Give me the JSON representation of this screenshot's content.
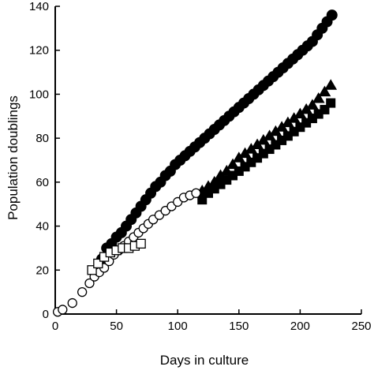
{
  "chart_data": {
    "type": "scatter",
    "title": "",
    "xlabel": "Days in culture",
    "ylabel": "Population doublings",
    "xlim": [
      0,
      250
    ],
    "ylim": [
      0,
      140
    ],
    "xticks": [
      0,
      50,
      100,
      150,
      200,
      250
    ],
    "yticks": [
      0,
      20,
      40,
      60,
      80,
      100,
      120,
      140
    ],
    "grid": false,
    "legend": "none",
    "series": [
      {
        "marker": "filled-circle",
        "color": "#000000",
        "x": [
          38,
          42,
          46,
          50,
          54,
          58,
          62,
          66,
          70,
          74,
          78,
          82,
          86,
          90,
          94,
          98,
          102,
          106,
          110,
          114,
          118,
          122,
          126,
          130,
          134,
          138,
          142,
          146,
          150,
          154,
          158,
          162,
          166,
          170,
          174,
          178,
          182,
          186,
          190,
          194,
          198,
          202,
          206,
          210,
          214,
          218,
          222,
          226
        ],
        "y": [
          25,
          30,
          32,
          35,
          37,
          40,
          43,
          46,
          49,
          52,
          55,
          58,
          60,
          63,
          65,
          68,
          70,
          72,
          74,
          76,
          78,
          80,
          82,
          84,
          86,
          88,
          90,
          92,
          94,
          96,
          98,
          100,
          102,
          104,
          106,
          108,
          110,
          112,
          114,
          116,
          118,
          120,
          122,
          124,
          127,
          130,
          133,
          136
        ]
      },
      {
        "marker": "filled-triangle",
        "color": "#000000",
        "x": [
          120,
          125,
          130,
          135,
          140,
          145,
          150,
          155,
          160,
          165,
          170,
          175,
          180,
          185,
          190,
          195,
          200,
          205,
          210,
          215,
          220,
          225
        ],
        "y": [
          56,
          58,
          60,
          63,
          65,
          68,
          71,
          73,
          75,
          77,
          79,
          81,
          83,
          85,
          87,
          89,
          91,
          93,
          95,
          98,
          101,
          104
        ]
      },
      {
        "marker": "filled-square",
        "color": "#000000",
        "x": [
          120,
          125,
          130,
          135,
          140,
          145,
          150,
          155,
          160,
          165,
          170,
          175,
          180,
          185,
          190,
          195,
          200,
          205,
          210,
          215,
          220,
          225
        ],
        "y": [
          52,
          55,
          57,
          59,
          61,
          63,
          65,
          67,
          69,
          71,
          73,
          75,
          77,
          79,
          81,
          83,
          85,
          87,
          89,
          91,
          93,
          96
        ]
      },
      {
        "marker": "open-circle",
        "color": "#000000",
        "x": [
          2,
          6,
          14,
          22,
          28,
          32,
          36,
          40,
          44,
          48,
          52,
          56,
          60,
          64,
          68,
          72,
          76,
          80,
          85,
          90,
          95,
          100,
          105,
          110,
          115
        ],
        "y": [
          1,
          2,
          5,
          10,
          14,
          17,
          19,
          21,
          24,
          27,
          29,
          31,
          33,
          35,
          37,
          39,
          41,
          43,
          45,
          47,
          49,
          51,
          53,
          54,
          55
        ]
      },
      {
        "marker": "open-square",
        "color": "#000000",
        "x": [
          30,
          35,
          40,
          45,
          50,
          55,
          60,
          65,
          70
        ],
        "y": [
          20,
          23,
          26,
          28,
          29,
          30,
          30,
          31,
          32
        ]
      }
    ]
  }
}
